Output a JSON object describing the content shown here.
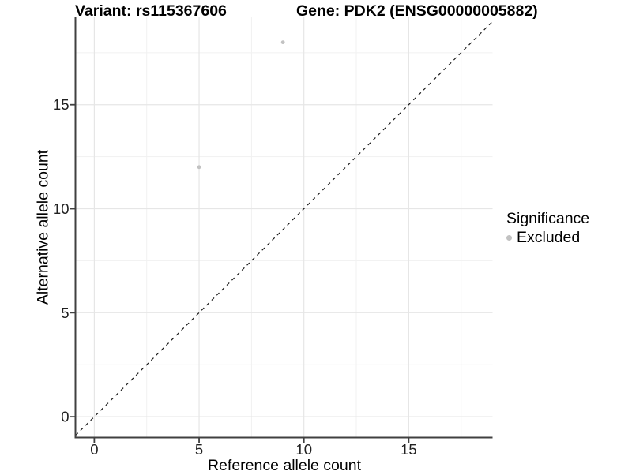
{
  "chart_data": {
    "type": "scatter",
    "titles": [
      "Variant: rs115367606",
      "Gene: PDK2 (ENSG00000005882)"
    ],
    "xlabel": "Reference allele count",
    "ylabel": "Alternative allele count",
    "x_ticks": [
      0,
      5,
      10,
      15
    ],
    "y_ticks": [
      0,
      5,
      10,
      15
    ],
    "x_minor_ticks": [
      2.5,
      7.5,
      12.5,
      17.5
    ],
    "y_minor_ticks": [
      2.5,
      7.5,
      12.5,
      17.5
    ],
    "xlim": [
      -0.9,
      19.0
    ],
    "ylim": [
      -1.0,
      19.2
    ],
    "grid": {
      "major": true,
      "minor": true
    },
    "series": [
      {
        "name": "Excluded",
        "color": "#c2c2c2",
        "points": [
          [
            5,
            12
          ],
          [
            9,
            18
          ]
        ]
      }
    ],
    "identity_line": {
      "slope": 1,
      "intercept": 0,
      "style": "dashed",
      "color": "#1a1a1a"
    },
    "legend": {
      "title": "Significance",
      "position": "right"
    }
  },
  "colors": {
    "background": "#ffffff",
    "grid_major": "#e6e6e6",
    "grid_minor": "#f1f1f1",
    "axis_line": "#404040",
    "tick_label": "#212121",
    "point": "#c2c2c2"
  }
}
